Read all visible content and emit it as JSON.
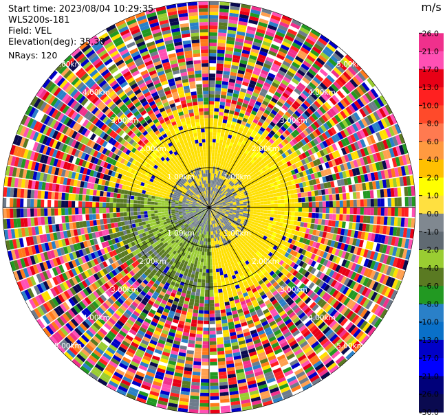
{
  "header": {
    "start_time": "Start time: 2023/08/04 10:29:35",
    "instrument": "WLS200s-181",
    "field": "Field: VEL",
    "elevation": "Elevation(deg): 35.30",
    "nrays": "NRays: 120"
  },
  "plot": {
    "type": "ppi",
    "range_ring_labels": [
      "1.00km",
      "2.00km",
      "3.00km",
      "4.00km",
      "5.00km",
      "6.00km"
    ],
    "gate_colors": [
      "#f0308c",
      "#e80016",
      "#ff7a1a",
      "#ffe000",
      "#0000c8",
      "#0a0a50",
      "#229922",
      "#5a7a22",
      "#9acd32",
      "#6e7c8c",
      "#ff50b4",
      "#2a80c8",
      "#ff2020",
      "#ffa050"
    ]
  },
  "colorbar": {
    "unit": "m/s",
    "ticks": [
      "26.0",
      "21.0",
      "17.0",
      "13.0",
      "10.0",
      "8.0",
      "6.0",
      "4.0",
      "2.0",
      "1.0",
      "0.0",
      "-1.0",
      "-2.0",
      "-4.0",
      "-6.0",
      "-8.0",
      "-10.0",
      "-13.0",
      "-17.0",
      "-21.0",
      "-26.0",
      "-30.0"
    ],
    "colors": [
      "#ffffff",
      "#f0308c",
      "#ff50b4",
      "#e80016",
      "#ff2020",
      "#ff4a2a",
      "#ff7a50",
      "#ff9a40",
      "#ffc000",
      "#ffff00",
      "#ffe040",
      "#808890",
      "#606a72",
      "#9acd32",
      "#5a7a22",
      "#229922",
      "#2a80c8",
      "#0a70c8",
      "#0000c8",
      "#0000ff",
      "#00007a",
      "#0a0a50"
    ]
  }
}
